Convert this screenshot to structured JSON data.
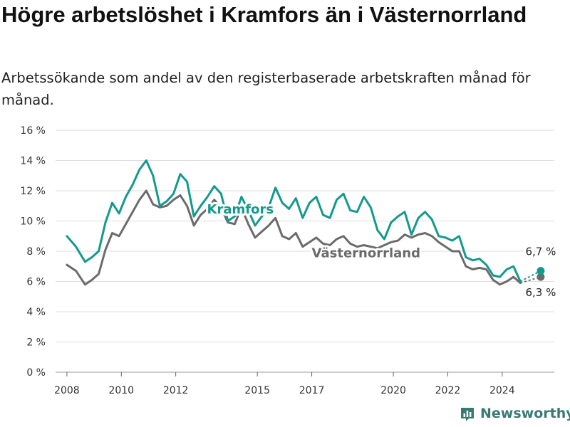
{
  "header": {
    "title": "Högre arbetslöshet i Kramfors än i Västernorrland",
    "subtitle": "Arbetssökande som andel av den registerbaserade arbetskraften månad för månad."
  },
  "brand": {
    "name": "Newsworthy",
    "color": "#3a7a72",
    "icon": "bar-chart-logo-icon"
  },
  "chart_data": {
    "type": "line",
    "title": "Högre arbetslöshet i Kramfors än i Västernorrland",
    "subtitle": "Arbetssökande som andel av den registerbaserade arbetskraften månad för månad.",
    "xlabel": "",
    "ylabel": "",
    "x_ticks": [
      "2008",
      "2010",
      "2012",
      "2015",
      "2017",
      "2020",
      "2022",
      "2024"
    ],
    "y_ticks": [
      "0 %",
      "2 %",
      "4 %",
      "6 %",
      "8 %",
      "10 %",
      "12 %",
      "14 %",
      "16 %"
    ],
    "ylim": [
      0,
      16
    ],
    "xlim": [
      "2007-08",
      "2025-12"
    ],
    "grid": "horizontal",
    "legend": "inline labels",
    "series": [
      {
        "name": "Kramfors",
        "color": "#139a8e",
        "end_label": "6,7 %",
        "points": [
          [
            "2008-01",
            9.0
          ],
          [
            "2008-05",
            8.3
          ],
          [
            "2008-09",
            7.3
          ],
          [
            "2008-12",
            7.6
          ],
          [
            "2009-03",
            8.0
          ],
          [
            "2009-06",
            9.9
          ],
          [
            "2009-09",
            11.2
          ],
          [
            "2009-12",
            10.5
          ],
          [
            "2010-03",
            11.6
          ],
          [
            "2010-06",
            12.4
          ],
          [
            "2010-09",
            13.4
          ],
          [
            "2010-12",
            14.0
          ],
          [
            "2011-03",
            13.0
          ],
          [
            "2011-06",
            11.0
          ],
          [
            "2011-09",
            11.3
          ],
          [
            "2011-12",
            11.8
          ],
          [
            "2012-03",
            13.1
          ],
          [
            "2012-06",
            12.6
          ],
          [
            "2012-09",
            10.3
          ],
          [
            "2012-12",
            11.0
          ],
          [
            "2013-03",
            11.6
          ],
          [
            "2013-06",
            12.3
          ],
          [
            "2013-09",
            11.8
          ],
          [
            "2013-12",
            10.0
          ],
          [
            "2014-03",
            10.3
          ],
          [
            "2014-06",
            11.6
          ],
          [
            "2014-09",
            10.7
          ],
          [
            "2014-12",
            9.7
          ],
          [
            "2015-03",
            10.3
          ],
          [
            "2015-06",
            10.9
          ],
          [
            "2015-09",
            12.2
          ],
          [
            "2015-12",
            11.2
          ],
          [
            "2016-03",
            10.8
          ],
          [
            "2016-06",
            11.5
          ],
          [
            "2016-09",
            10.2
          ],
          [
            "2016-12",
            11.2
          ],
          [
            "2017-03",
            11.6
          ],
          [
            "2017-06",
            10.4
          ],
          [
            "2017-09",
            10.2
          ],
          [
            "2017-12",
            11.4
          ],
          [
            "2018-03",
            11.8
          ],
          [
            "2018-06",
            10.7
          ],
          [
            "2018-09",
            10.6
          ],
          [
            "2018-12",
            11.6
          ],
          [
            "2019-03",
            10.9
          ],
          [
            "2019-06",
            9.4
          ],
          [
            "2019-09",
            8.8
          ],
          [
            "2019-12",
            9.9
          ],
          [
            "2020-03",
            10.3
          ],
          [
            "2020-06",
            10.6
          ],
          [
            "2020-09",
            9.1
          ],
          [
            "2020-12",
            10.2
          ],
          [
            "2021-03",
            10.6
          ],
          [
            "2021-06",
            10.1
          ],
          [
            "2021-09",
            9.0
          ],
          [
            "2021-12",
            8.9
          ],
          [
            "2022-03",
            8.7
          ],
          [
            "2022-06",
            9.0
          ],
          [
            "2022-09",
            7.6
          ],
          [
            "2022-12",
            7.4
          ],
          [
            "2023-03",
            7.5
          ],
          [
            "2023-06",
            7.1
          ],
          [
            "2023-09",
            6.4
          ],
          [
            "2023-12",
            6.3
          ],
          [
            "2024-03",
            6.8
          ],
          [
            "2024-06",
            7.0
          ],
          [
            "2024-09",
            6.0
          ],
          [
            "2025-06",
            6.7
          ]
        ]
      },
      {
        "name": "Västernorrland",
        "color": "#6b6b6b",
        "end_label": "6,3 %",
        "points": [
          [
            "2008-01",
            7.1
          ],
          [
            "2008-05",
            6.7
          ],
          [
            "2008-09",
            5.8
          ],
          [
            "2008-12",
            6.1
          ],
          [
            "2009-03",
            6.5
          ],
          [
            "2009-06",
            8.1
          ],
          [
            "2009-09",
            9.2
          ],
          [
            "2009-12",
            9.0
          ],
          [
            "2010-03",
            9.8
          ],
          [
            "2010-06",
            10.6
          ],
          [
            "2010-09",
            11.4
          ],
          [
            "2010-12",
            12.0
          ],
          [
            "2011-03",
            11.1
          ],
          [
            "2011-06",
            10.9
          ],
          [
            "2011-09",
            11.0
          ],
          [
            "2011-12",
            11.4
          ],
          [
            "2012-03",
            11.7
          ],
          [
            "2012-06",
            11.0
          ],
          [
            "2012-09",
            9.7
          ],
          [
            "2012-12",
            10.4
          ],
          [
            "2013-03",
            10.8
          ],
          [
            "2013-06",
            11.4
          ],
          [
            "2013-09",
            10.9
          ],
          [
            "2013-12",
            9.9
          ],
          [
            "2014-03",
            9.8
          ],
          [
            "2014-06",
            10.9
          ],
          [
            "2014-09",
            9.8
          ],
          [
            "2014-12",
            8.9
          ],
          [
            "2015-03",
            9.3
          ],
          [
            "2015-06",
            9.7
          ],
          [
            "2015-09",
            10.2
          ],
          [
            "2015-12",
            9.0
          ],
          [
            "2016-03",
            8.8
          ],
          [
            "2016-06",
            9.2
          ],
          [
            "2016-09",
            8.3
          ],
          [
            "2016-12",
            8.6
          ],
          [
            "2017-03",
            8.9
          ],
          [
            "2017-06",
            8.5
          ],
          [
            "2017-09",
            8.4
          ],
          [
            "2017-12",
            8.8
          ],
          [
            "2018-03",
            9.0
          ],
          [
            "2018-06",
            8.5
          ],
          [
            "2018-09",
            8.3
          ],
          [
            "2018-12",
            8.4
          ],
          [
            "2019-03",
            8.3
          ],
          [
            "2019-06",
            8.2
          ],
          [
            "2019-09",
            8.4
          ],
          [
            "2019-12",
            8.6
          ],
          [
            "2020-03",
            8.7
          ],
          [
            "2020-06",
            9.1
          ],
          [
            "2020-09",
            8.9
          ],
          [
            "2020-12",
            9.1
          ],
          [
            "2021-03",
            9.2
          ],
          [
            "2021-06",
            9.0
          ],
          [
            "2021-09",
            8.6
          ],
          [
            "2021-12",
            8.3
          ],
          [
            "2022-03",
            8.0
          ],
          [
            "2022-06",
            8.0
          ],
          [
            "2022-09",
            7.0
          ],
          [
            "2022-12",
            6.8
          ],
          [
            "2023-03",
            6.9
          ],
          [
            "2023-06",
            6.8
          ],
          [
            "2023-09",
            6.1
          ],
          [
            "2023-12",
            5.8
          ],
          [
            "2024-03",
            6.0
          ],
          [
            "2024-06",
            6.3
          ],
          [
            "2024-09",
            5.9
          ],
          [
            "2025-06",
            6.3
          ]
        ]
      }
    ]
  }
}
